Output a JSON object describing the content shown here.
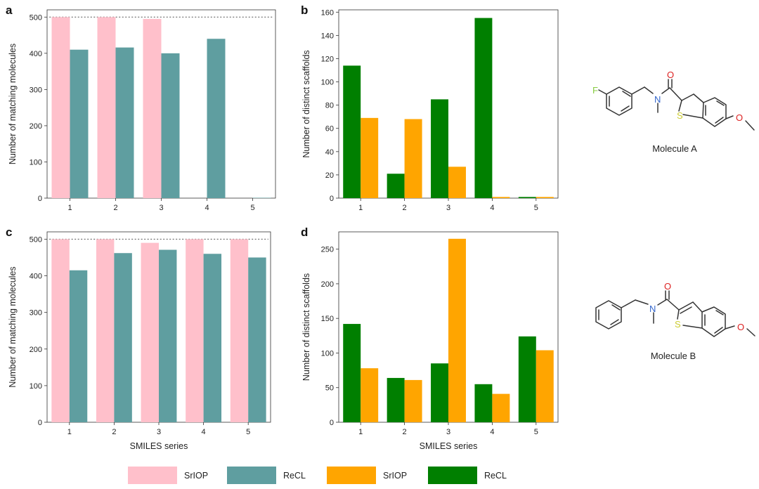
{
  "colors": {
    "sriop_pink": "#FFC0CB",
    "recl_teal": "#5F9EA0",
    "sriop_orange": "#FFA500",
    "recl_green": "#007F00",
    "bond": "#333333",
    "fluorine": "#88CC44",
    "nitrogen": "#3366CC",
    "oxygen": "#DD2222",
    "sulfur": "#CCCC33"
  },
  "legend": {
    "items": [
      {
        "label": "SrIOP",
        "color": "#FFC0CB"
      },
      {
        "label": "ReCL",
        "color": "#5F9EA0"
      },
      {
        "label": "SrIOP",
        "color": "#FFA500"
      },
      {
        "label": "ReCL",
        "color": "#007F00"
      }
    ]
  },
  "chart_data": [
    {
      "panel": "a",
      "type": "bar",
      "title": "",
      "xlabel": "",
      "ylabel": "Number of matching molecules",
      "categories": [
        "1",
        "2",
        "3",
        "4",
        "5"
      ],
      "ylim": [
        0,
        520
      ],
      "yticks": [
        0,
        100,
        200,
        300,
        400,
        500
      ],
      "reference_line": 500,
      "series": [
        {
          "name": "SrIOP",
          "color": "#FFC0CB",
          "values": [
            500,
            500,
            495,
            0,
            0
          ]
        },
        {
          "name": "ReCL",
          "color": "#5F9EA0",
          "values": [
            410,
            416,
            400,
            440,
            1
          ]
        }
      ]
    },
    {
      "panel": "b",
      "type": "bar",
      "title": "",
      "xlabel": "",
      "ylabel": "Number of distinct scaffolds",
      "categories": [
        "1",
        "2",
        "3",
        "4",
        "5"
      ],
      "ylim": [
        0,
        162
      ],
      "yticks": [
        0,
        20,
        40,
        60,
        80,
        100,
        120,
        140,
        160
      ],
      "series": [
        {
          "name": "ReCL",
          "color": "#007F00",
          "values": [
            114,
            21,
            85,
            155,
            1
          ]
        },
        {
          "name": "SrIOP",
          "color": "#FFA500",
          "values": [
            69,
            68,
            27,
            1,
            1
          ]
        }
      ]
    },
    {
      "panel": "c",
      "type": "bar",
      "title": "",
      "xlabel": "SMILES series",
      "ylabel": "Number of matching molecules",
      "categories": [
        "1",
        "2",
        "3",
        "4",
        "5"
      ],
      "ylim": [
        0,
        520
      ],
      "yticks": [
        0,
        100,
        200,
        300,
        400,
        500
      ],
      "reference_line": 500,
      "series": [
        {
          "name": "SrIOP",
          "color": "#FFC0CB",
          "values": [
            500,
            500,
            490,
            500,
            500
          ]
        },
        {
          "name": "ReCL",
          "color": "#5F9EA0",
          "values": [
            415,
            462,
            471,
            460,
            450
          ]
        }
      ]
    },
    {
      "panel": "d",
      "type": "bar",
      "title": "",
      "xlabel": "SMILES series",
      "ylabel": "Number of distinct scaffolds",
      "categories": [
        "1",
        "2",
        "3",
        "4",
        "5"
      ],
      "ylim": [
        0,
        275
      ],
      "yticks": [
        0,
        50,
        100,
        150,
        200,
        250
      ],
      "series": [
        {
          "name": "ReCL",
          "color": "#007F00",
          "values": [
            142,
            64,
            85,
            55,
            124
          ]
        },
        {
          "name": "SrIOP",
          "color": "#FFA500",
          "values": [
            78,
            61,
            265,
            41,
            104
          ]
        }
      ]
    }
  ],
  "molecules": [
    {
      "name": "Molecule A",
      "atoms": {
        "F": "F",
        "N": "N",
        "O_carbonyl": "O",
        "S": "S",
        "O_methoxy": "O"
      }
    },
    {
      "name": "Molecule B",
      "atoms": {
        "N": "N",
        "O_carbonyl": "O",
        "S": "S",
        "O_methoxy": "O"
      }
    }
  ]
}
